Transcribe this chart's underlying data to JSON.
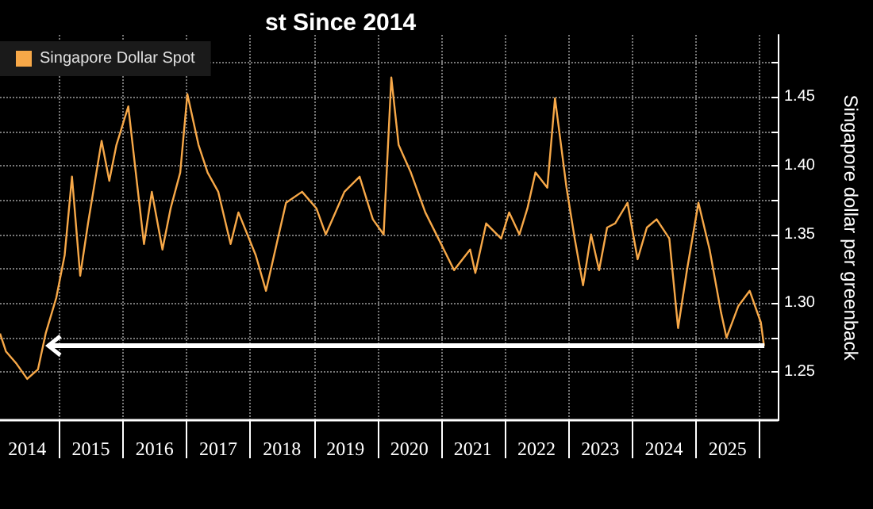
{
  "chart_data": {
    "type": "line",
    "title": "st Since 2014",
    "ylabel": "Singapore dollar per greenback",
    "series": [
      {
        "name": "Singapore Dollar Spot",
        "color": "#f7a848",
        "x": [
          "2014-01-26",
          "2014-03-01",
          "2014-05-01",
          "2014-07-01",
          "2014-09-01",
          "2014-10-15",
          "2014-12-15",
          "2015-02-01",
          "2015-03-15",
          "2015-05-01",
          "2015-06-15",
          "2015-09-01",
          "2015-10-15",
          "2015-11-25",
          "2016-02-01",
          "2016-03-15",
          "2016-05-01",
          "2016-06-15",
          "2016-08-15",
          "2016-10-01",
          "2016-11-25",
          "2017-01-05",
          "2017-03-10",
          "2017-05-01",
          "2017-07-01",
          "2017-09-10",
          "2017-10-25",
          "2018-02-01",
          "2018-04-01",
          "2018-06-01",
          "2018-07-25",
          "2018-10-25",
          "2019-01-15",
          "2019-03-10",
          "2019-06-25",
          "2019-09-20",
          "2019-12-05",
          "2020-02-05",
          "2020-03-20",
          "2020-05-01",
          "2020-07-10",
          "2020-10-01",
          "2020-12-15",
          "2021-03-15",
          "2021-06-15",
          "2021-07-15",
          "2021-09-15",
          "2021-12-10",
          "2022-01-25",
          "2022-03-25",
          "2022-05-10",
          "2022-06-25",
          "2022-09-01",
          "2022-10-15",
          "2022-12-20",
          "2023-02-05",
          "2023-03-25",
          "2023-05-10",
          "2023-06-25",
          "2023-08-10",
          "2023-09-25",
          "2023-12-05",
          "2024-02-01",
          "2024-03-25",
          "2024-05-20",
          "2024-08-01",
          "2024-09-20",
          "2024-11-10",
          "2025-01-15",
          "2025-03-20",
          "2025-05-25",
          "2025-06-25",
          "2025-09-01",
          "2025-11-05",
          "2026-01-08",
          "2026-01-26"
        ],
        "values": [
          1.278,
          1.265,
          1.256,
          1.245,
          1.252,
          1.278,
          1.304,
          1.335,
          1.392,
          1.32,
          1.358,
          1.418,
          1.389,
          1.415,
          1.443,
          1.395,
          1.343,
          1.381,
          1.339,
          1.369,
          1.395,
          1.452,
          1.415,
          1.395,
          1.381,
          1.343,
          1.366,
          1.335,
          1.309,
          1.343,
          1.373,
          1.381,
          1.369,
          1.35,
          1.381,
          1.392,
          1.361,
          1.35,
          1.464,
          1.415,
          1.395,
          1.366,
          1.347,
          1.324,
          1.339,
          1.322,
          1.358,
          1.347,
          1.366,
          1.35,
          1.369,
          1.395,
          1.384,
          1.449,
          1.384,
          1.347,
          1.313,
          1.35,
          1.324,
          1.355,
          1.358,
          1.373,
          1.332,
          1.355,
          1.361,
          1.347,
          1.282,
          1.324,
          1.373,
          1.339,
          1.293,
          1.275,
          1.298,
          1.309,
          1.286,
          1.269
        ]
      }
    ],
    "xlim": [
      "2014-01-26",
      "2026-04-15"
    ],
    "xticks": [
      {
        "value": "2014-07-01",
        "label": "2014"
      },
      {
        "value": "2015-01-01",
        "label": null
      },
      {
        "value": "2015-07-01",
        "label": "2015"
      },
      {
        "value": "2016-01-01",
        "label": null
      },
      {
        "value": "2016-07-01",
        "label": "2016"
      },
      {
        "value": "2017-01-01",
        "label": null
      },
      {
        "value": "2017-07-01",
        "label": "2017"
      },
      {
        "value": "2018-01-01",
        "label": null
      },
      {
        "value": "2018-07-01",
        "label": "2018"
      },
      {
        "value": "2019-01-01",
        "label": null
      },
      {
        "value": "2019-07-01",
        "label": "2019"
      },
      {
        "value": "2020-01-01",
        "label": null
      },
      {
        "value": "2020-07-01",
        "label": "2020"
      },
      {
        "value": "2021-01-01",
        "label": null
      },
      {
        "value": "2021-07-01",
        "label": "2021"
      },
      {
        "value": "2022-01-01",
        "label": null
      },
      {
        "value": "2022-07-01",
        "label": "2022"
      },
      {
        "value": "2023-01-01",
        "label": null
      },
      {
        "value": "2023-07-01",
        "label": "2023"
      },
      {
        "value": "2024-01-01",
        "label": null
      },
      {
        "value": "2024-07-01",
        "label": "2024"
      },
      {
        "value": "2025-01-01",
        "label": null
      },
      {
        "value": "2025-07-01",
        "label": "2025"
      },
      {
        "value": "2026-01-01",
        "label": null
      }
    ],
    "ylim": [
      1.215,
      1.495
    ],
    "yticks": [
      1.25,
      {
        "value": 1.275,
        "label": null
      },
      {
        "value": 1.3,
        "label": "1.30"
      },
      {
        "value": 1.325,
        "label": null
      },
      1.35,
      {
        "value": 1.375,
        "label": null
      },
      {
        "value": 1.4,
        "label": "1.40"
      },
      {
        "value": 1.425,
        "label": null
      },
      1.45,
      {
        "value": 1.475,
        "label": null
      }
    ],
    "ref_lines": [
      {
        "axis": "y",
        "value": 1.269,
        "color": "#ffffff"
      }
    ],
    "grid": true,
    "legend": "top left",
    "marker": "none",
    "line_style": "solid"
  }
}
